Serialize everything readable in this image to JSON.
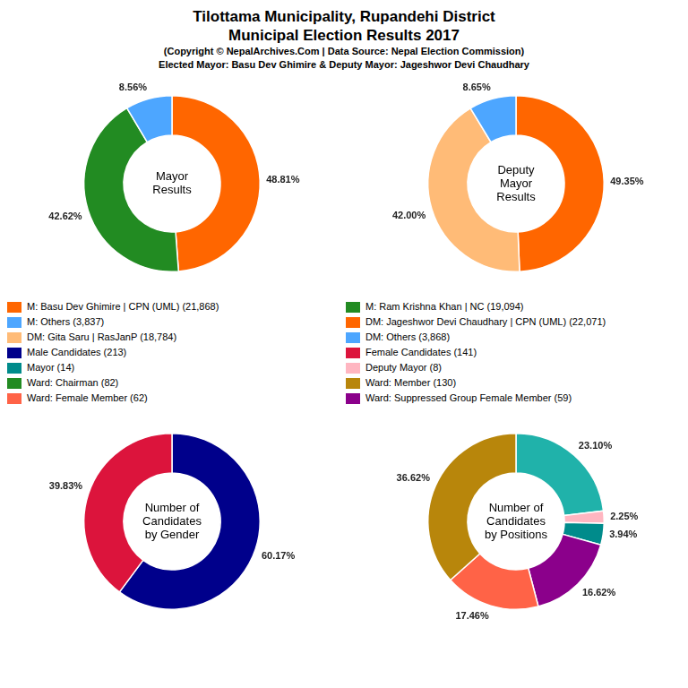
{
  "title": [
    "Tilottama Municipality, Rupandehi District",
    "Municipal Election Results 2017"
  ],
  "subtitle": [
    "(Copyright © NepalArchives.Com | Data Source: Nepal Election Commission)",
    "Elected Mayor: Basu Dev Ghimire & Deputy Mayor: Jageshwor Devi Chaudhary"
  ],
  "legend_entries": [
    {
      "name": "M: Basu Dev Ghimire | CPN (UML) (21,868)",
      "color": "#FF6600"
    },
    {
      "name": "M: Ram Krishna Khan | NC (19,094)",
      "color": "#228B22"
    },
    {
      "name": "M: Others (3,837)",
      "color": "#4DA6FF"
    },
    {
      "name": "DM: Jageshwor Devi Chaudhary | CPN (UML) (22,071)",
      "color": "#FF6600"
    },
    {
      "name": "DM: Gita Saru | RasJanP (18,784)",
      "color": "#FFBB77"
    },
    {
      "name": "DM: Others (3,868)",
      "color": "#4DA6FF"
    },
    {
      "name": "Male Candidates (213)",
      "color": "#00008B"
    },
    {
      "name": "Female Candidates (141)",
      "color": "#DC143C"
    },
    {
      "name": "Mayor (14)",
      "color": "#008B8B"
    },
    {
      "name": "Deputy Mayor (8)",
      "color": "#FFB6C1"
    },
    {
      "name": "Ward: Chairman (82)",
      "color": "#228B22"
    },
    {
      "name": "Ward: Member (130)",
      "color": "#B8860B"
    },
    {
      "name": "Ward: Female Member (62)",
      "color": "#FF6347"
    },
    {
      "name": "Ward: Suppressed Group Female Member (59)",
      "color": "#8B008B"
    }
  ],
  "chart_data": [
    {
      "type": "doughnut",
      "title": "Mayor\nResults",
      "values": [
        48.81,
        42.62,
        8.56
      ],
      "value_labels": [
        "48.81%",
        "42.62%",
        "8.56%"
      ],
      "colors": [
        "#FF6600",
        "#228B22",
        "#4DA6FF"
      ],
      "data_labels": true
    },
    {
      "type": "doughnut",
      "title": "Deputy\nMayor\nResults",
      "values": [
        49.35,
        42.0,
        8.65
      ],
      "value_labels": [
        "49.35%",
        "42.00%",
        "8.65%"
      ],
      "colors": [
        "#FF6600",
        "#FFBB77",
        "#4DA6FF"
      ],
      "data_labels": true
    },
    {
      "type": "doughnut",
      "title": "Number of\nCandidates\nby Gender",
      "values": [
        60.17,
        39.83
      ],
      "value_labels": [
        "60.17%",
        "39.83%"
      ],
      "colors": [
        "#00008B",
        "#DC143C"
      ],
      "data_labels": true
    },
    {
      "type": "doughnut",
      "title": "Number of\nCandidates\nby Positions",
      "values": [
        23.1,
        2.25,
        3.94,
        16.62,
        17.46,
        36.62
      ],
      "value_labels": [
        "23.10%",
        "2.25%",
        "3.94%",
        "16.62%",
        "17.46%",
        "36.62%"
      ],
      "colors": [
        "#20B2AA",
        "#FFB6C1",
        "#008B8B",
        "#8B008B",
        "#FF6347",
        "#B8860B"
      ],
      "data_labels": true
    }
  ]
}
